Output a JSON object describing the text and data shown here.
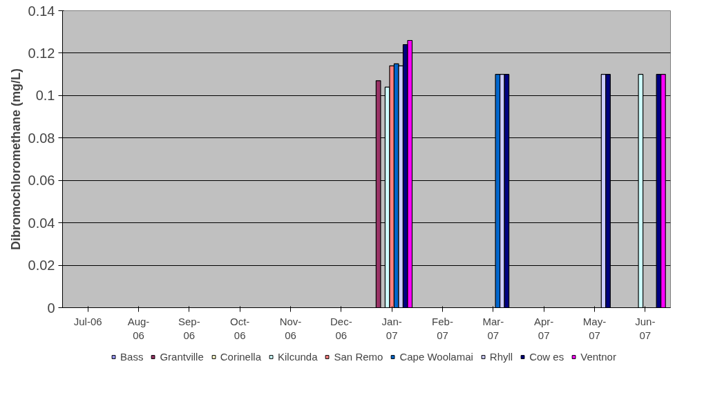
{
  "chart_data": {
    "type": "bar",
    "ylabel": "Dibromochloromethane (mg/L)",
    "categories": [
      "Jul-06",
      "Aug-06",
      "Sep-06",
      "Oct-06",
      "Nov-06",
      "Dec-06",
      "Jan-07",
      "Feb-07",
      "Mar-07",
      "Apr-07",
      "May-07",
      "Jun-07"
    ],
    "series": [
      {
        "name": "Bass",
        "color": "#9999ff",
        "values": [
          null,
          null,
          null,
          null,
          null,
          null,
          null,
          null,
          null,
          null,
          null,
          null
        ]
      },
      {
        "name": "Grantville",
        "color": "#993366",
        "values": [
          null,
          null,
          null,
          null,
          null,
          null,
          0.107,
          null,
          null,
          null,
          null,
          null
        ]
      },
      {
        "name": "Corinella",
        "color": "#ffffcc",
        "values": [
          null,
          null,
          null,
          null,
          null,
          null,
          null,
          null,
          null,
          null,
          null,
          null
        ]
      },
      {
        "name": "Kilcunda",
        "color": "#ccffff",
        "values": [
          null,
          null,
          null,
          null,
          null,
          null,
          0.104,
          null,
          null,
          null,
          null,
          0.11
        ]
      },
      {
        "name": "San Remo",
        "color": "#ff8080",
        "values": [
          null,
          null,
          null,
          null,
          null,
          null,
          0.114,
          null,
          null,
          null,
          null,
          null
        ]
      },
      {
        "name": "Cape Woolamai",
        "color": "#0066cc",
        "values": [
          null,
          null,
          null,
          null,
          null,
          null,
          0.115,
          null,
          0.11,
          null,
          null,
          null
        ]
      },
      {
        "name": "Rhyll",
        "color": "#ccccff",
        "values": [
          null,
          null,
          null,
          null,
          null,
          null,
          0.114,
          null,
          0.11,
          null,
          0.11,
          null
        ]
      },
      {
        "name": "Cow es",
        "color": "#000080",
        "values": [
          null,
          null,
          null,
          null,
          null,
          null,
          0.124,
          null,
          0.11,
          null,
          0.11,
          0.11
        ]
      },
      {
        "name": "Ventnor",
        "color": "#ff00ff",
        "values": [
          null,
          null,
          null,
          null,
          null,
          null,
          0.126,
          null,
          null,
          null,
          null,
          0.11
        ]
      }
    ],
    "ylim": [
      0,
      0.14
    ],
    "yticks": [
      0,
      0.02,
      0.04,
      0.06,
      0.08,
      0.1,
      0.12,
      0.14
    ],
    "grid": "y",
    "legend": "bottom"
  }
}
